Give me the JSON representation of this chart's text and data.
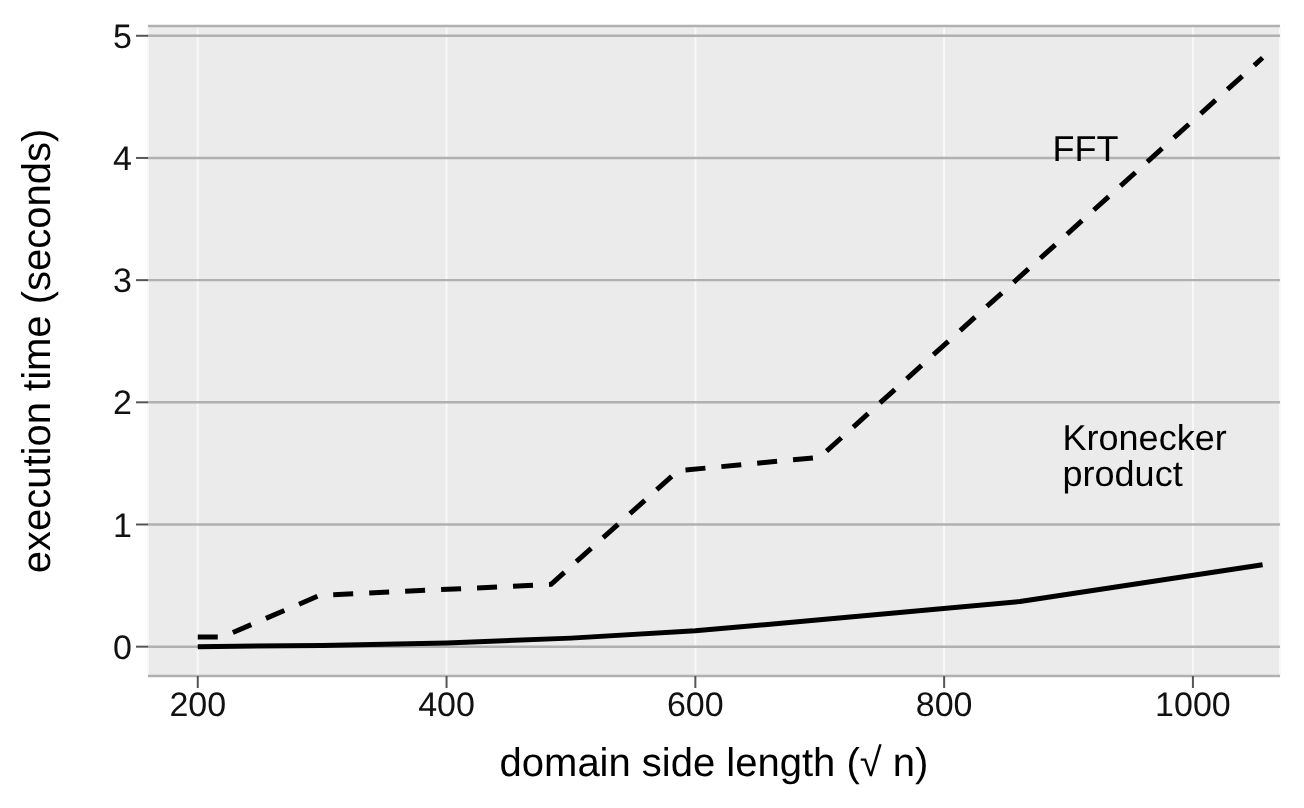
{
  "chart_data": {
    "type": "line",
    "xlabel": "domain side length (√ n)",
    "ylabel": "execution time (seconds)",
    "xlim": [
      160,
      1070
    ],
    "ylim": [
      -0.24,
      5.08
    ],
    "xticks": [
      200,
      400,
      600,
      800,
      1000
    ],
    "yticks": [
      0,
      1,
      2,
      3,
      4,
      5
    ],
    "grid": true,
    "series": [
      {
        "name": "FFT",
        "color": "#000000",
        "line_style": "dashed",
        "x": [
          200,
          220,
          298,
          484,
          586,
          700,
          1056
        ],
        "values": [
          0.08,
          0.08,
          0.42,
          0.51,
          1.44,
          1.55,
          4.82
        ]
      },
      {
        "name": "Kronecker product",
        "color": "#000000",
        "line_style": "solid",
        "x": [
          200,
          300,
          400,
          500,
          600,
          700,
          861,
          1056
        ],
        "values": [
          0,
          0.01,
          0.03,
          0.07,
          0.13,
          0.22,
          0.37,
          0.67
        ]
      }
    ]
  }
}
